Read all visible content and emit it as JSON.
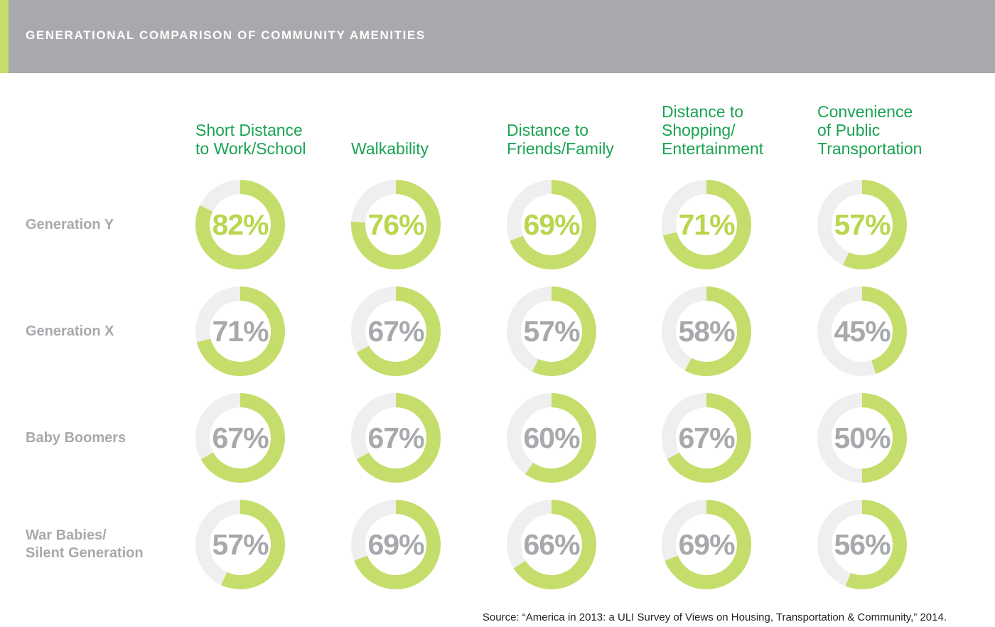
{
  "header": {
    "title": "GENERATIONAL COMPARISON OF COMMUNITY AMENITIES"
  },
  "colors": {
    "header_bg": "#a7a9ac",
    "accent": "#c5de6b",
    "ring_track": "#efefef",
    "ring_fill": "#c5de6b",
    "column_header": "#1aa352",
    "highlight_value": "#b9d64e",
    "normal_value": "#a7a9ac"
  },
  "chart_data": {
    "type": "donut",
    "title": "GENERATIONAL COMPARISON OF COMMUNITY AMENITIES",
    "categories": [
      "Short Distance\nto Work/School",
      "Walkability",
      "Distance to\nFriends/Family",
      "Distance to\nShopping/\nEntertainment",
      "Convenience\nof Public\nTransportation"
    ],
    "series": [
      {
        "name": "Generation Y",
        "values": [
          82,
          76,
          69,
          71,
          57
        ],
        "highlight": true
      },
      {
        "name": "Generation X",
        "values": [
          71,
          67,
          57,
          58,
          45
        ],
        "highlight": false
      },
      {
        "name": "Baby Boomers",
        "values": [
          67,
          67,
          60,
          67,
          50
        ],
        "highlight": false
      },
      {
        "name": "War Babies/\nSilent Generation",
        "values": [
          57,
          69,
          66,
          69,
          56
        ],
        "highlight": false
      }
    ],
    "value_suffix": "%",
    "source": "Source: “America in 2013: a ULI Survey of Views on Housing, Transportation & Community,” 2014."
  }
}
